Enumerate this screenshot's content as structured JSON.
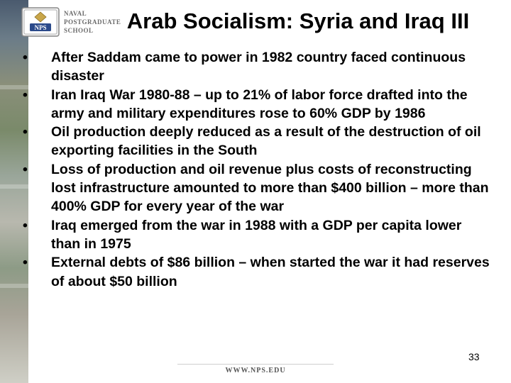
{
  "logo": {
    "badge_text": "NPS",
    "lines": [
      "NAVAL",
      "POSTGRADUATE",
      "SCHOOL"
    ]
  },
  "slide": {
    "title": "Arab Socialism: Syria and Iraq III",
    "bullets": [
      "After Saddam came to power in 1982 country faced continuous disaster",
      "Iran Iraq War 1980-88 – up to 21% of labor force drafted into the army and military expenditures rose to 60% GDP by 1986",
      "Oil production deeply reduced as a result of the destruction of oil exporting facilities in the South",
      "Loss of production and oil revenue plus costs of reconstructing lost infrastructure amounted to more than $400 billion – more than 400% GDP for every year of the war",
      "Iraq emerged from the war in 1988 with a GDP per capita lower than in 1975",
      "External debts of $86 billion –  when started the war it had reserves of about $50 billion"
    ],
    "page_number": "33"
  },
  "footer": {
    "url": "WWW.NPS.EDU"
  }
}
